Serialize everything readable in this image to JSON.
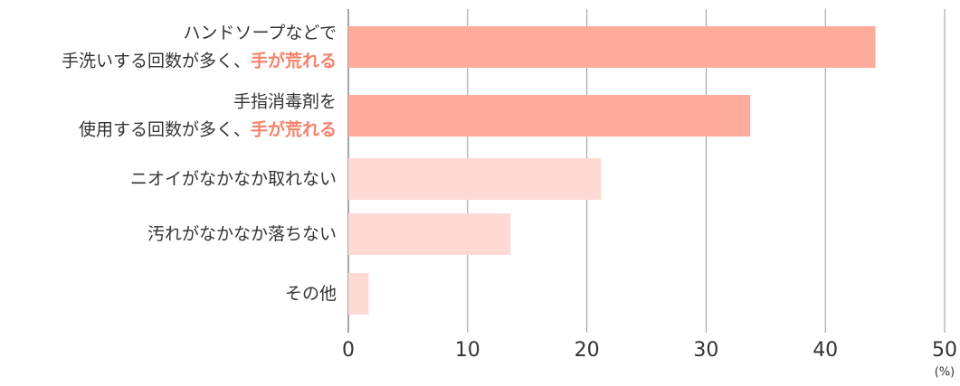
{
  "chart_data": {
    "type": "bar",
    "orientation": "horizontal",
    "categories": [
      [
        [
          "ハンドソープなどで"
        ],
        [
          "手洗いする回数が多く、",
          "手が荒れる"
        ]
      ],
      [
        [
          "手指消毒剤を"
        ],
        [
          "使用する回数が多く、",
          "手が荒れる"
        ]
      ],
      [
        [
          "ニオイがなかなか取れない"
        ]
      ],
      [
        [
          "汚れがなかなか落ちない"
        ]
      ],
      [
        [
          "その他"
        ]
      ]
    ],
    "values": [
      44.2,
      33.7,
      21.2,
      13.6,
      1.7
    ],
    "colors": [
      "#ffab9c",
      "#ffab9c",
      "#ffdad4",
      "#ffdad4",
      "#ffdad4"
    ],
    "highlight_color": "#f5826b",
    "xlim": [
      0,
      50
    ],
    "xticks": [
      0,
      10,
      20,
      30,
      40,
      50
    ],
    "x_unit": "(%)",
    "grid": true
  }
}
